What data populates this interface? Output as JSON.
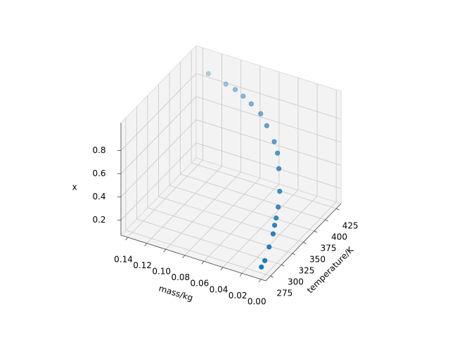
{
  "chart_data": {
    "type": "scatter3d",
    "xlabel": "mass/kg",
    "ylabel": "temperature/K",
    "zlabel": "x",
    "color": "#1f77b4",
    "grid": true,
    "xlim": [
      0.147,
      -0.005
    ],
    "ylim": [
      264,
      436
    ],
    "zlim": [
      0.07,
      1.04
    ],
    "xticks": [
      0.14,
      0.12,
      {
        "value": 0.1,
        "label": "0.10"
      },
      0.08,
      0.06,
      0.04,
      0.02,
      {
        "value": 0,
        "label": "0.00"
      }
    ],
    "yticks": [
      275,
      300,
      325,
      350,
      375,
      400,
      425
    ],
    "zticks": [
      0.2,
      0.4,
      0.6,
      0.8
    ],
    "x": [
      0.001,
      0.002,
      0.002,
      0.002,
      0.005,
      0.008,
      0.01,
      0.013,
      0.018,
      0.024,
      0.032,
      0.044,
      0.055,
      0.069,
      0.082,
      0.095,
      0.109,
      0.132
    ],
    "y": [
      267,
      277,
      287,
      296,
      306,
      316,
      325,
      335,
      344,
      354,
      364,
      373,
      383,
      392,
      402,
      412,
      421,
      431
    ],
    "z": [
      0.162,
      0.176,
      0.255,
      0.333,
      0.361,
      0.377,
      0.432,
      0.521,
      0.669,
      0.749,
      0.788,
      0.86,
      0.896,
      0.91,
      0.904,
      0.888,
      0.864,
      0.856
    ]
  }
}
